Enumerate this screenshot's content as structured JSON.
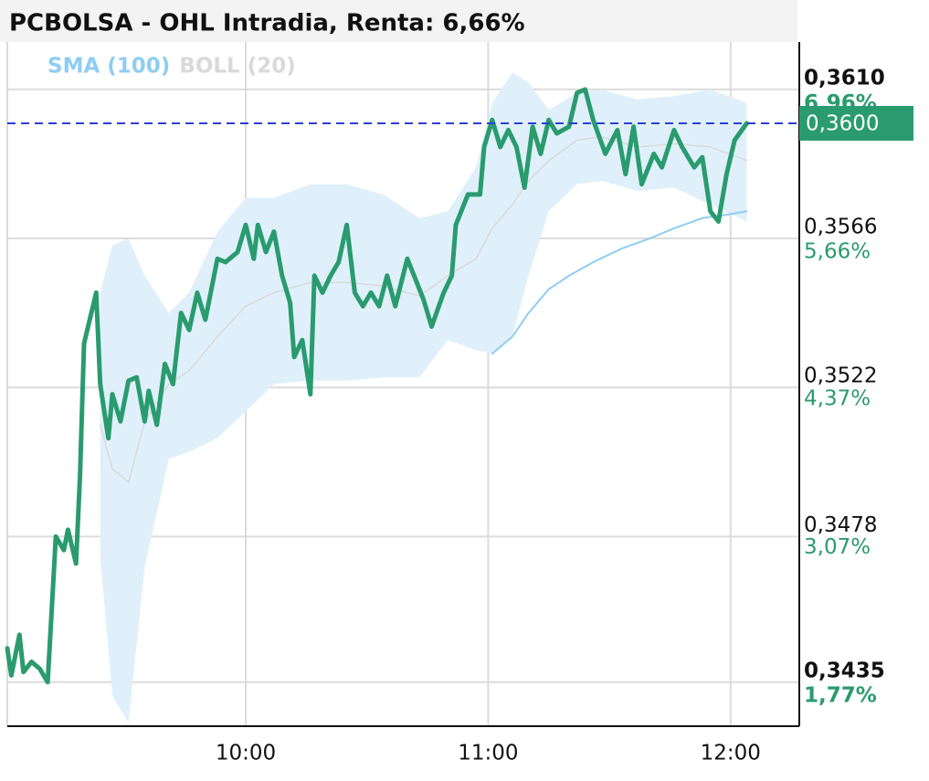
{
  "chart_data": {
    "type": "line",
    "title": "PCBOLSA - OHL Intradia, Renta: 6,66%",
    "xlim": [
      541,
      737
    ],
    "xticks": [
      {
        "value": 600,
        "label": "10:00"
      },
      {
        "value": 660,
        "label": "11:00"
      },
      {
        "value": 720,
        "label": "12:00"
      }
    ],
    "ylim": [
      0.3422,
      0.3624
    ],
    "yticks": [
      {
        "value": 0.361,
        "label": "0,3610"
      },
      {
        "value": 0.3566,
        "label": "0,3566"
      },
      {
        "value": 0.3522,
        "label": "0,3522"
      },
      {
        "value": 0.3478,
        "label": "0,3478"
      },
      {
        "value": 0.3435,
        "label": "0,3435"
      }
    ],
    "y2lim": [
      1.38,
      7.37
    ],
    "y2ticks": [
      {
        "value": 6.96,
        "label": "6,96%"
      },
      {
        "value": 5.66,
        "label": "5,66%"
      },
      {
        "value": 4.37,
        "label": "4,37%"
      },
      {
        "value": 3.07,
        "label": "3,07%"
      },
      {
        "value": 1.77,
        "label": "1,77%"
      }
    ],
    "grid": true,
    "last_price": {
      "value": 0.36,
      "label": "0,3600",
      "color": "#2a9b6e",
      "line_color": "#2b3fd6"
    },
    "series": [
      {
        "color": "#2a9b6e",
        "x": [
          541,
          542,
          544,
          545,
          547,
          549,
          551,
          553,
          555,
          556,
          558,
          559,
          560,
          563,
          564,
          566,
          567,
          569,
          571,
          573,
          575,
          576,
          578,
          580,
          582,
          584,
          586,
          588,
          590,
          593,
          595,
          598,
          600,
          602,
          603,
          605,
          607,
          609,
          611,
          612,
          614,
          616,
          617,
          619,
          621,
          623,
          625,
          627,
          629,
          631,
          633,
          635,
          637,
          640,
          642,
          644,
          646,
          649,
          651,
          652,
          655,
          658,
          659,
          661,
          663,
          665,
          667,
          669,
          671,
          673,
          675,
          677,
          680,
          682,
          684,
          686,
          689,
          692,
          694,
          696,
          698,
          701,
          703,
          706,
          708,
          711,
          713,
          715,
          717,
          719,
          721,
          724
        ],
        "values": [
          0.3445,
          0.3437,
          0.3449,
          0.3438,
          0.3441,
          0.3439,
          0.3435,
          0.3478,
          0.3474,
          0.348,
          0.347,
          0.3496,
          0.3535,
          0.355,
          0.3523,
          0.3507,
          0.352,
          0.3512,
          0.3524,
          0.3525,
          0.3512,
          0.3521,
          0.3511,
          0.3529,
          0.3523,
          0.3544,
          0.3539,
          0.355,
          0.3542,
          0.356,
          0.3559,
          0.3562,
          0.357,
          0.356,
          0.357,
          0.3562,
          0.3568,
          0.3555,
          0.3547,
          0.3531,
          0.3536,
          0.352,
          0.3555,
          0.355,
          0.3555,
          0.3559,
          0.357,
          0.355,
          0.3546,
          0.355,
          0.3546,
          0.3555,
          0.3546,
          0.356,
          0.3554,
          0.3548,
          0.354,
          0.355,
          0.3555,
          0.357,
          0.3579,
          0.3579,
          0.3593,
          0.3601,
          0.3593,
          0.3598,
          0.3593,
          0.3581,
          0.3599,
          0.3591,
          0.3601,
          0.3597,
          0.3599,
          0.3609,
          0.361,
          0.3601,
          0.3591,
          0.3598,
          0.3585,
          0.3599,
          0.3582,
          0.3591,
          0.3587,
          0.3598,
          0.3593,
          0.3587,
          0.359,
          0.3574,
          0.3571,
          0.3585,
          0.3595,
          0.36
        ]
      },
      {
        "name": "SMA (100)",
        "color": "#8fcdf3",
        "x": [
          661,
          666,
          670,
          675,
          680,
          686,
          693,
          700,
          706,
          713,
          719,
          724
        ],
        "values": [
          0.3532,
          0.3537,
          0.3544,
          0.3551,
          0.3555,
          0.3559,
          0.3563,
          0.3566,
          0.3569,
          0.3572,
          0.3573,
          0.3574
        ]
      },
      {
        "name": "BOLL (20)",
        "color": "#d9d9d9",
        "fill": "#dff0fb",
        "x": [
          564,
          567,
          571,
          575,
          581,
          586,
          593,
          600,
          607,
          616,
          625,
          634,
          643,
          650,
          657,
          661,
          666,
          670,
          675,
          682,
          688,
          697,
          706,
          715,
          724
        ],
        "values": [
          0.3511,
          0.3498,
          0.3494,
          0.3512,
          0.3523,
          0.3527,
          0.3537,
          0.3546,
          0.355,
          0.3553,
          0.3553,
          0.3552,
          0.3549,
          0.3555,
          0.356,
          0.3569,
          0.3576,
          0.3583,
          0.3589,
          0.3595,
          0.3596,
          0.3593,
          0.3594,
          0.3593,
          0.3589
        ],
        "upper": [
          0.355,
          0.3564,
          0.3566,
          0.3555,
          0.3544,
          0.355,
          0.3568,
          0.3578,
          0.3578,
          0.3582,
          0.3582,
          0.3579,
          0.3572,
          0.3574,
          0.3587,
          0.3606,
          0.3615,
          0.3612,
          0.3604,
          0.3609,
          0.361,
          0.3607,
          0.3608,
          0.361,
          0.3606
        ],
        "lower": [
          0.3472,
          0.3431,
          0.3423,
          0.3469,
          0.3501,
          0.3503,
          0.3507,
          0.3515,
          0.3523,
          0.3524,
          0.3524,
          0.3525,
          0.3525,
          0.3536,
          0.3533,
          0.3532,
          0.3537,
          0.3555,
          0.3574,
          0.3582,
          0.3583,
          0.358,
          0.3581,
          0.3576,
          0.3571
        ]
      }
    ]
  }
}
